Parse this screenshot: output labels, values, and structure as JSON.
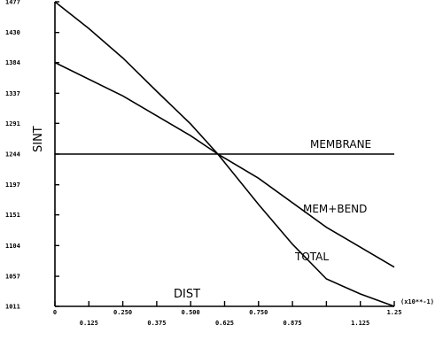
{
  "chart_data": {
    "type": "line",
    "xlabel": "DIST",
    "ylabel": "SINT",
    "x_multiplier_label": "(x10**-1)",
    "xlim": [
      0,
      1.25
    ],
    "ylim": [
      1011,
      1477
    ],
    "y_ticks": [
      {
        "value": 1011,
        "label": "1011"
      },
      {
        "value": 1057,
        "label": "1057"
      },
      {
        "value": 1104,
        "label": "1104"
      },
      {
        "value": 1151,
        "label": "1151"
      },
      {
        "value": 1197,
        "label": "1197"
      },
      {
        "value": 1244,
        "label": "1244"
      },
      {
        "value": 1291,
        "label": "1291"
      },
      {
        "value": 1337,
        "label": "1337"
      },
      {
        "value": 1384,
        "label": "1384"
      },
      {
        "value": 1430,
        "label": "1430"
      },
      {
        "value": 1477,
        "label": "1477"
      }
    ],
    "x_ticks": [
      {
        "value": 0,
        "label": "0"
      },
      {
        "value": 0.125,
        "label": "0.125"
      },
      {
        "value": 0.25,
        "label": "0.250"
      },
      {
        "value": 0.375,
        "label": "0.375"
      },
      {
        "value": 0.5,
        "label": "0.500"
      },
      {
        "value": 0.625,
        "label": "0.625"
      },
      {
        "value": 0.75,
        "label": "0.750"
      },
      {
        "value": 0.875,
        "label": "0.875"
      },
      {
        "value": 1.0,
        "label": ""
      },
      {
        "value": 1.125,
        "label": "1.125"
      },
      {
        "value": 1.25,
        "label": "1.25"
      }
    ],
    "series": [
      {
        "name": "MEMBRANE",
        "x": [
          0,
          1.25
        ],
        "y": [
          1244,
          1244
        ]
      },
      {
        "name": "MEM+BEND",
        "x": [
          0,
          0.25,
          0.5,
          0.6,
          0.75,
          1.0,
          1.25
        ],
        "y": [
          1384,
          1333,
          1272,
          1244,
          1207,
          1132,
          1071
        ]
      },
      {
        "name": "TOTAL",
        "x": [
          0,
          0.125,
          0.25,
          0.375,
          0.5,
          0.6,
          0.75,
          0.875,
          1.0,
          1.125,
          1.25
        ],
        "y": [
          1477,
          1436,
          1391,
          1340,
          1290,
          1244,
          1167,
          1106,
          1053,
          1030,
          1011
        ]
      }
    ]
  }
}
